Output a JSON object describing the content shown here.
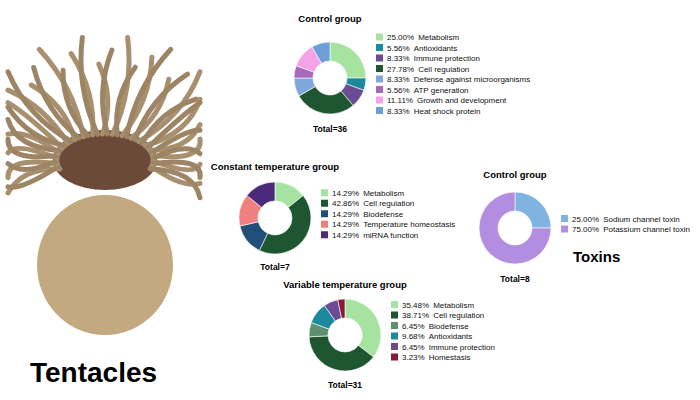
{
  "figure": {
    "label": "Tentacles"
  },
  "chart_data": [
    {
      "type": "donut",
      "title": "Control group",
      "categories": [
        "Metabolism",
        "Antioxidants",
        "Immune protection",
        "Cell regulation",
        "Defense against microorganisms",
        "ATP generation",
        "Growth and development",
        "Heat shock protein"
      ],
      "values": [
        25.0,
        5.56,
        8.33,
        27.78,
        8.33,
        5.56,
        11.11,
        8.33
      ],
      "value_labels": [
        "25.00%",
        "5.56%",
        "8.33%",
        "27.78%",
        "8.33%",
        "5.56%",
        "11.11%",
        "8.33%"
      ],
      "colors": [
        "#a6e3a1",
        "#1b8a9c",
        "#6a4c93",
        "#1e5631",
        "#7fa7d9",
        "#a569bd",
        "#f5a3e6",
        "#6d9ed6"
      ],
      "legend": "right",
      "annotation": "Total=36"
    },
    {
      "type": "donut",
      "title": "Constant temperature group",
      "categories": [
        "Metabolism",
        "Cell regulation",
        "Biodefense",
        "Temperature homeostasis",
        "miRNA function"
      ],
      "values": [
        14.29,
        42.86,
        14.29,
        14.29,
        14.29
      ],
      "value_labels": [
        "14.29%",
        "42.86%",
        "14.29%",
        "14.29%",
        "14.29%"
      ],
      "colors": [
        "#a6e3a1",
        "#1e5631",
        "#1f4e79",
        "#f08080",
        "#4b2a7b"
      ],
      "legend": "right",
      "annotation": "Total=7"
    },
    {
      "type": "donut",
      "title": "Control group",
      "subtitle": "Toxins",
      "categories": [
        "Sodium channel toxin",
        "Potassium channel toxin"
      ],
      "values": [
        25.0,
        75.0
      ],
      "value_labels": [
        "25.00%",
        "75.00%"
      ],
      "colors": [
        "#7fb3e0",
        "#b38ee0"
      ],
      "legend": "right",
      "annotation": "Total=8"
    },
    {
      "type": "donut",
      "title": "Variable temperature group",
      "categories": [
        "Metabolism",
        "Cell regulation",
        "Biodefense",
        "Antioxidants",
        "Immune protection",
        "Homestasis"
      ],
      "values": [
        35.48,
        38.71,
        6.45,
        9.68,
        6.45,
        3.23
      ],
      "value_labels": [
        "35.48%",
        "38.71%",
        "6.45%",
        "9.68%",
        "6.45%",
        "3.23%"
      ],
      "colors": [
        "#a6e3a1",
        "#1e5631",
        "#5e8f6e",
        "#1b8a9c",
        "#6a4c93",
        "#8b1a3a"
      ],
      "legend": "right",
      "annotation": "Total=31"
    }
  ]
}
